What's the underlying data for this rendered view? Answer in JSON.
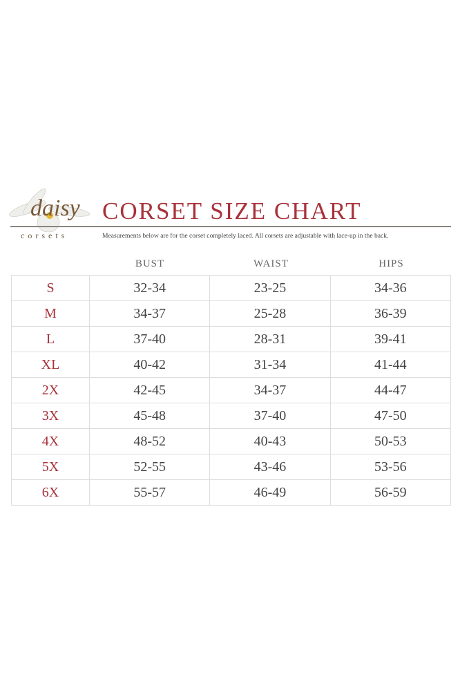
{
  "brand": {
    "logo_script": "daisy",
    "logo_word": "corsets"
  },
  "title": "CORSET SIZE CHART",
  "subtitle": "Measurements below are for the corset completely laced.  All corsets are adjustable with lace-up in the back.",
  "colors": {
    "accent": "#a8323a",
    "text": "#444444",
    "border": "#dddddd"
  },
  "columns": [
    "BUST",
    "WAIST",
    "HIPS"
  ],
  "rows": [
    {
      "size": "S",
      "bust": "32-34",
      "waist": "23-25",
      "hips": "34-36"
    },
    {
      "size": "M",
      "bust": "34-37",
      "waist": "25-28",
      "hips": "36-39"
    },
    {
      "size": "L",
      "bust": "37-40",
      "waist": "28-31",
      "hips": "39-41"
    },
    {
      "size": "XL",
      "bust": "40-42",
      "waist": "31-34",
      "hips": "41-44"
    },
    {
      "size": "2X",
      "bust": "42-45",
      "waist": "34-37",
      "hips": "44-47"
    },
    {
      "size": "3X",
      "bust": "45-48",
      "waist": "37-40",
      "hips": "47-50"
    },
    {
      "size": "4X",
      "bust": "48-52",
      "waist": "40-43",
      "hips": "50-53"
    },
    {
      "size": "5X",
      "bust": "52-55",
      "waist": "43-46",
      "hips": "53-56"
    },
    {
      "size": "6X",
      "bust": "55-57",
      "waist": "46-49",
      "hips": "56-59"
    }
  ]
}
